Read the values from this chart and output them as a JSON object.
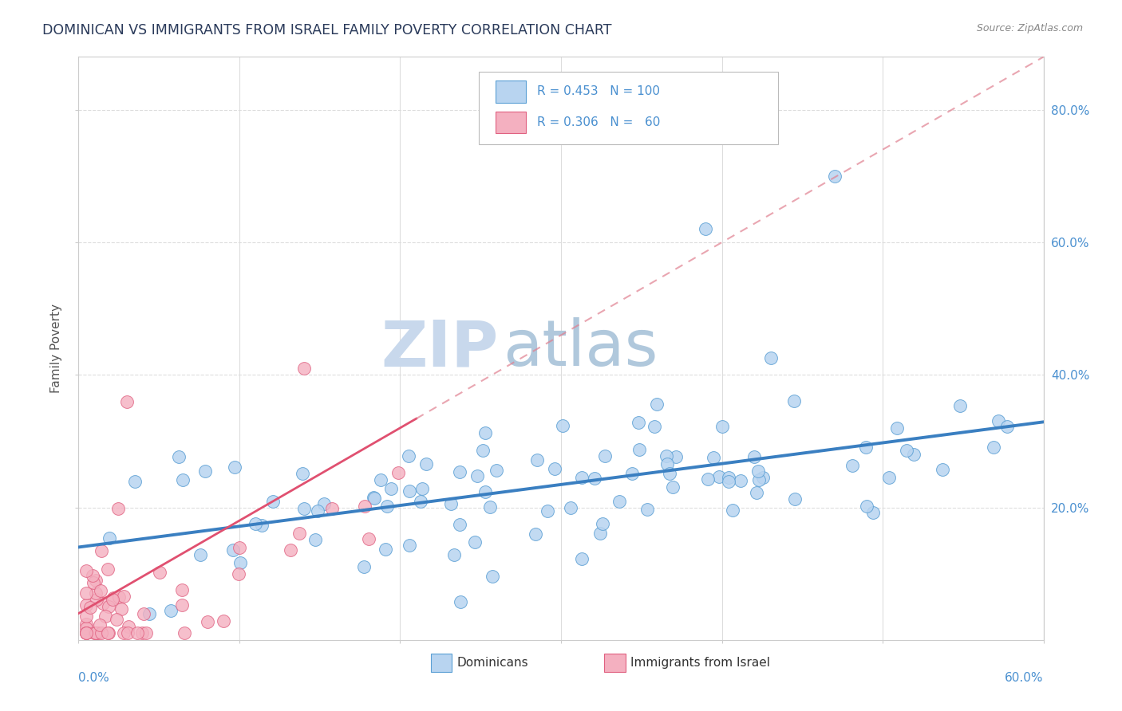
{
  "title": "DOMINICAN VS IMMIGRANTS FROM ISRAEL FAMILY POVERTY CORRELATION CHART",
  "source": "Source: ZipAtlas.com",
  "ylabel": "Family Poverty",
  "y_ticks_right_vals": [
    0.2,
    0.4,
    0.6,
    0.8
  ],
  "x_range": [
    0.0,
    0.6
  ],
  "y_range": [
    0.0,
    0.88
  ],
  "blue_fill": "#b8d4f0",
  "blue_edge": "#5a9fd4",
  "pink_fill": "#f4b0c0",
  "pink_edge": "#e06080",
  "trend_blue": "#3a7fc1",
  "trend_pink": "#e05070",
  "trend_pink_dash": "#e08090",
  "watermark_zip_color": "#c8d8ec",
  "watermark_atlas_color": "#b0c8dc",
  "grid_color": "#dddddd",
  "spine_color": "#cccccc"
}
